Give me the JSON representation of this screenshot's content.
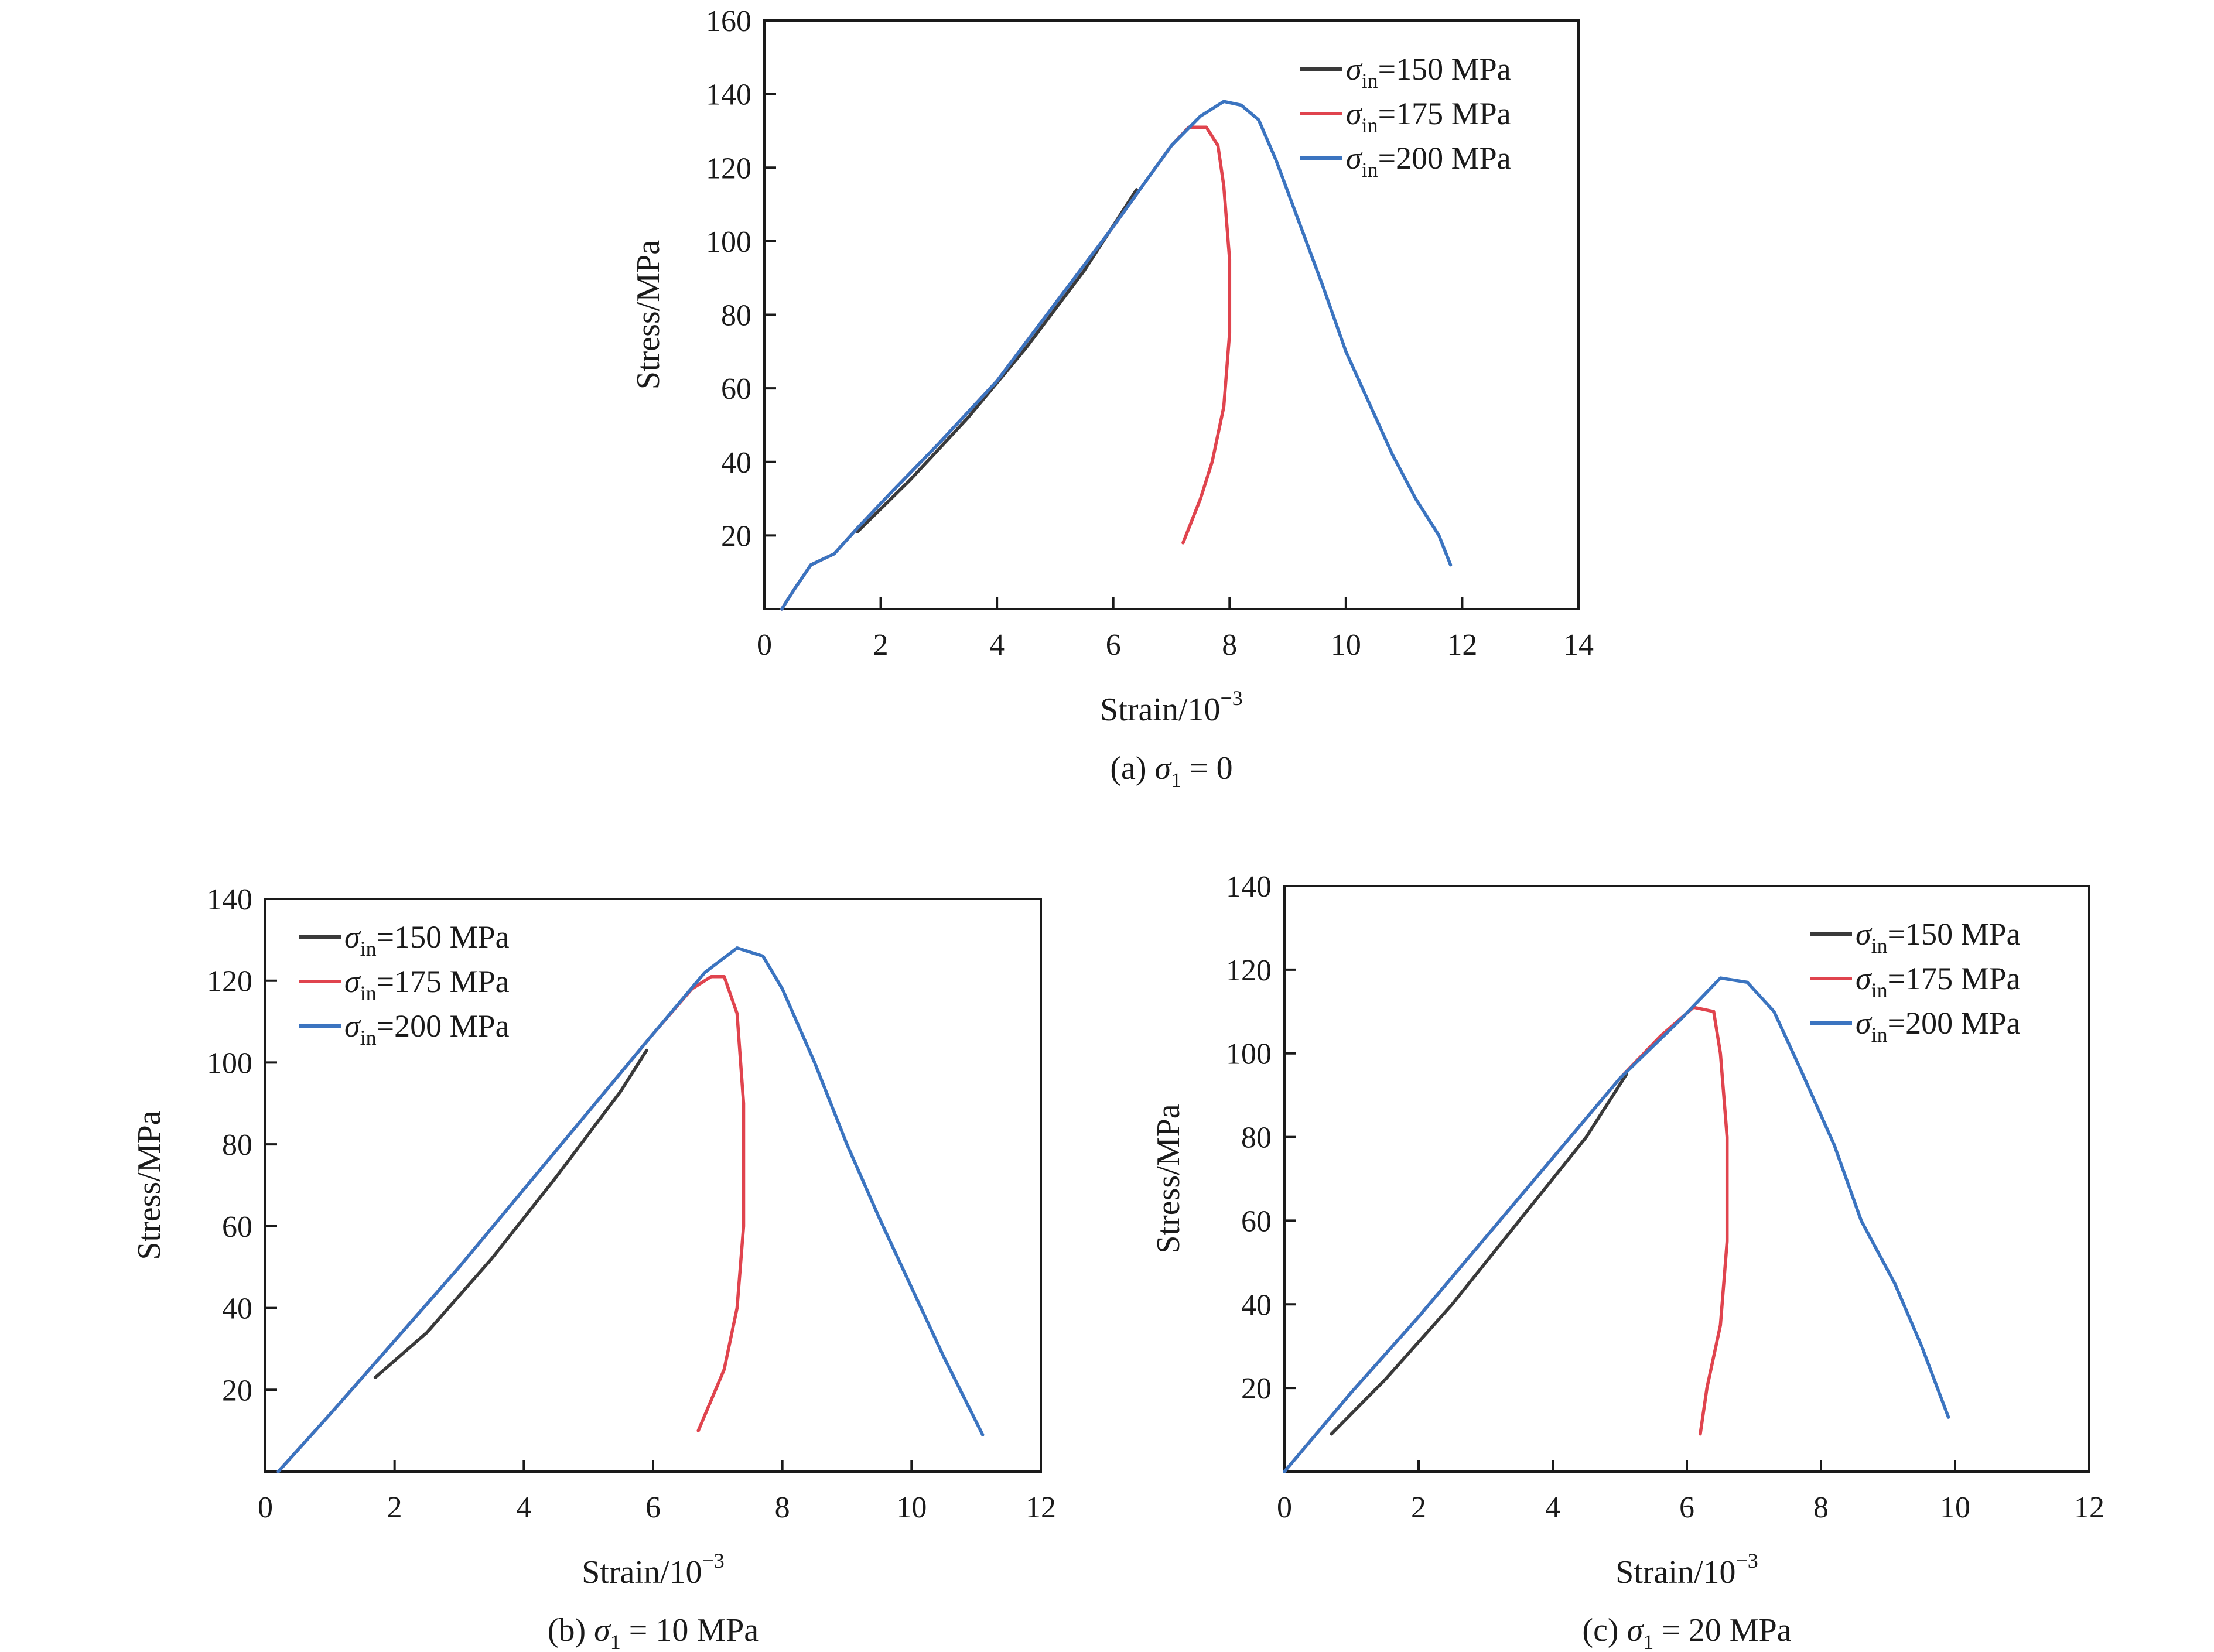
{
  "chart_data": [
    {
      "type": "line",
      "caption": {
        "prefix": "(a) ",
        "symbol": "σ",
        "sub": "1",
        "suffix": " = 0"
      },
      "xlabel": "Strain/10",
      "xlabel_sup": "−3",
      "ylabel": "Stress/MPa",
      "xlim": [
        0,
        14
      ],
      "ylim": [
        0,
        160
      ],
      "xticks": [
        0,
        2,
        4,
        6,
        8,
        10,
        12,
        14
      ],
      "yticks": [
        20,
        40,
        60,
        80,
        100,
        120,
        140,
        160
      ],
      "legend_position": "top-right",
      "series": [
        {
          "name": "σin=150 MPa",
          "label_symbol": "σ",
          "label_sub": "in",
          "label_rest": "=150 MPa",
          "color": "#3a3a3a",
          "points": [
            [
              1.6,
              21
            ],
            [
              2.5,
              35
            ],
            [
              3.5,
              52
            ],
            [
              4.5,
              71
            ],
            [
              5.5,
              92
            ],
            [
              6.4,
              114
            ]
          ]
        },
        {
          "name": "σin=175 MPa",
          "label_symbol": "σ",
          "label_sub": "in",
          "label_rest": "=175 MPa",
          "color": "#e0444e",
          "points": [
            [
              0.3,
              0
            ],
            [
              0.5,
              5
            ],
            [
              0.8,
              12
            ],
            [
              1.2,
              15
            ],
            [
              1.6,
              22
            ],
            [
              2.2,
              32
            ],
            [
              3,
              45
            ],
            [
              4,
              62
            ],
            [
              5,
              83
            ],
            [
              6,
              104
            ],
            [
              7,
              126
            ],
            [
              7.3,
              131
            ],
            [
              7.6,
              131
            ],
            [
              7.8,
              126
            ],
            [
              7.9,
              115
            ],
            [
              8,
              95
            ],
            [
              8,
              75
            ],
            [
              7.9,
              55
            ],
            [
              7.7,
              40
            ],
            [
              7.5,
              30
            ],
            [
              7.2,
              18
            ]
          ]
        },
        {
          "name": "σin=200 MPa",
          "label_symbol": "σ",
          "label_sub": "in",
          "label_rest": "=200 MPa",
          "color": "#3b74c0",
          "points": [
            [
              0.3,
              0
            ],
            [
              0.5,
              5
            ],
            [
              0.8,
              12
            ],
            [
              1.2,
              15
            ],
            [
              1.6,
              22
            ],
            [
              2.2,
              32
            ],
            [
              3,
              45
            ],
            [
              4,
              62
            ],
            [
              5,
              83
            ],
            [
              6,
              104
            ],
            [
              7,
              126
            ],
            [
              7.5,
              134
            ],
            [
              7.9,
              138
            ],
            [
              8.2,
              137
            ],
            [
              8.5,
              133
            ],
            [
              8.8,
              122
            ],
            [
              9.2,
              105
            ],
            [
              9.6,
              88
            ],
            [
              10,
              70
            ],
            [
              10.4,
              56
            ],
            [
              10.8,
              42
            ],
            [
              11.2,
              30
            ],
            [
              11.6,
              20
            ],
            [
              11.8,
              12
            ]
          ]
        }
      ]
    },
    {
      "type": "line",
      "caption": {
        "prefix": "(b) ",
        "symbol": "σ",
        "sub": "1",
        "suffix": " = 10 MPa"
      },
      "xlabel": "Strain/10",
      "xlabel_sup": "−3",
      "ylabel": "Stress/MPa",
      "xlim": [
        0,
        12
      ],
      "ylim": [
        0,
        140
      ],
      "xticks": [
        0,
        2,
        4,
        6,
        8,
        10,
        12
      ],
      "yticks": [
        20,
        40,
        60,
        80,
        100,
        120,
        140
      ],
      "legend_position": "top-left",
      "series": [
        {
          "name": "σin=150 MPa",
          "label_symbol": "σ",
          "label_sub": "in",
          "label_rest": "=150 MPa",
          "color": "#3a3a3a",
          "points": [
            [
              1.7,
              23
            ],
            [
              2.5,
              34
            ],
            [
              3.5,
              52
            ],
            [
              4.5,
              72
            ],
            [
              5.5,
              93
            ],
            [
              5.9,
              103
            ]
          ]
        },
        {
          "name": "σin=175 MPa",
          "label_symbol": "σ",
          "label_sub": "in",
          "label_rest": "=175 MPa",
          "color": "#e0444e",
          "points": [
            [
              0.2,
              0
            ],
            [
              1,
              14
            ],
            [
              2,
              32
            ],
            [
              3,
              50
            ],
            [
              4,
              69
            ],
            [
              5,
              88
            ],
            [
              6,
              107
            ],
            [
              6.6,
              118
            ],
            [
              6.9,
              121
            ],
            [
              7.1,
              121
            ],
            [
              7.3,
              112
            ],
            [
              7.4,
              90
            ],
            [
              7.4,
              60
            ],
            [
              7.3,
              40
            ],
            [
              7.1,
              25
            ],
            [
              6.7,
              10
            ]
          ]
        },
        {
          "name": "σin=200 MPa",
          "label_symbol": "σ",
          "label_sub": "in",
          "label_rest": "=200 MPa",
          "color": "#3b74c0",
          "points": [
            [
              0.2,
              0
            ],
            [
              1,
              14
            ],
            [
              2,
              32
            ],
            [
              3,
              50
            ],
            [
              4,
              69
            ],
            [
              5,
              88
            ],
            [
              6,
              107
            ],
            [
              6.8,
              122
            ],
            [
              7.3,
              128
            ],
            [
              7.7,
              126
            ],
            [
              8,
              118
            ],
            [
              8.5,
              100
            ],
            [
              9,
              80
            ],
            [
              9.5,
              62
            ],
            [
              10,
              45
            ],
            [
              10.5,
              28
            ],
            [
              11.1,
              9
            ]
          ]
        }
      ]
    },
    {
      "type": "line",
      "caption": {
        "prefix": "(c) ",
        "symbol": "σ",
        "sub": "1",
        "suffix": " = 20 MPa"
      },
      "xlabel": "Strain/10",
      "xlabel_sup": "−3",
      "ylabel": "Stress/MPa",
      "xlim": [
        0,
        12
      ],
      "ylim": [
        0,
        140
      ],
      "xticks": [
        0,
        2,
        4,
        6,
        8,
        10,
        12
      ],
      "yticks": [
        20,
        40,
        60,
        80,
        100,
        120,
        140
      ],
      "legend_position": "top-right",
      "series": [
        {
          "name": "σin=150 MPa",
          "label_symbol": "σ",
          "label_sub": "in",
          "label_rest": "=150 MPa",
          "color": "#3a3a3a",
          "points": [
            [
              0.7,
              9
            ],
            [
              1.5,
              22
            ],
            [
              2.5,
              40
            ],
            [
              3.5,
              60
            ],
            [
              4.5,
              80
            ],
            [
              5.1,
              95
            ]
          ]
        },
        {
          "name": "σin=175 MPa",
          "label_symbol": "σ",
          "label_sub": "in",
          "label_rest": "=175 MPa",
          "color": "#e0444e",
          "points": [
            [
              0,
              0
            ],
            [
              1,
              19
            ],
            [
              2,
              37
            ],
            [
              3,
              56
            ],
            [
              4,
              75
            ],
            [
              5,
              94
            ],
            [
              5.6,
              104
            ],
            [
              6.1,
              111
            ],
            [
              6.4,
              110
            ],
            [
              6.5,
              100
            ],
            [
              6.6,
              80
            ],
            [
              6.6,
              55
            ],
            [
              6.5,
              35
            ],
            [
              6.3,
              20
            ],
            [
              6.2,
              9
            ]
          ]
        },
        {
          "name": "σin=200 MPa",
          "label_symbol": "σ",
          "label_sub": "in",
          "label_rest": "=200 MPa",
          "color": "#3b74c0",
          "points": [
            [
              0,
              0
            ],
            [
              1,
              19
            ],
            [
              2,
              37
            ],
            [
              3,
              56
            ],
            [
              4,
              75
            ],
            [
              5,
              94
            ],
            [
              5.9,
              108
            ],
            [
              6.5,
              118
            ],
            [
              6.9,
              117
            ],
            [
              7.3,
              110
            ],
            [
              7.7,
              96
            ],
            [
              8.2,
              78
            ],
            [
              8.6,
              60
            ],
            [
              9.1,
              45
            ],
            [
              9.5,
              30
            ],
            [
              9.9,
              13
            ]
          ]
        }
      ]
    }
  ]
}
